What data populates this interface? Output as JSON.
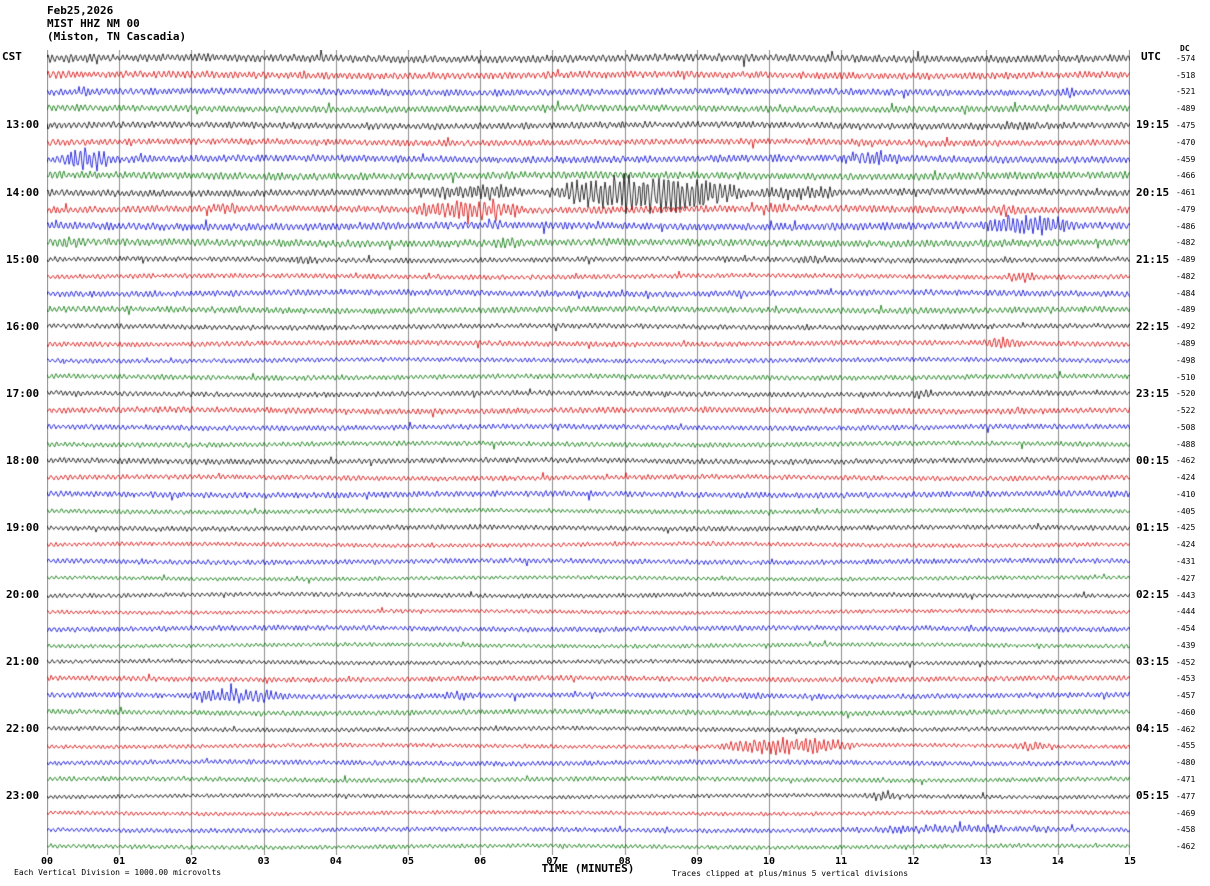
{
  "header": {
    "date": "Feb25,2026",
    "station": "MIST HHZ NM 00",
    "location": "(Miston, TN Cascadia)"
  },
  "axes": {
    "left_timezone": "CST",
    "right_timezone": "UTC",
    "dc_header": "DC",
    "x_title": "TIME (MINUTES)",
    "x_ticks": [
      "00",
      "01",
      "02",
      "03",
      "04",
      "05",
      "06",
      "07",
      "08",
      "09",
      "10",
      "11",
      "12",
      "13",
      "14",
      "15"
    ]
  },
  "footer": {
    "scale_note": "Each Vertical Division = 1000.00 microvolts",
    "clip_note": "Traces clipped at plus/minus 5 vertical divisions"
  },
  "chart_data": {
    "type": "line",
    "title": "MIST HHZ NM 00 webicorder",
    "x_range_minutes": [
      0,
      15
    ],
    "minutes_per_line": 15,
    "rows": 48,
    "trace_colors_cycle": [
      "#000000",
      "#d40000",
      "#0000d4",
      "#007300"
    ],
    "grid_color": "#8c8c8c",
    "left_time_labels": [
      {
        "row": 4,
        "label": "13:00"
      },
      {
        "row": 8,
        "label": "14:00"
      },
      {
        "row": 12,
        "label": "15:00"
      },
      {
        "row": 16,
        "label": "16:00"
      },
      {
        "row": 20,
        "label": "17:00"
      },
      {
        "row": 24,
        "label": "18:00"
      },
      {
        "row": 28,
        "label": "19:00"
      },
      {
        "row": 32,
        "label": "20:00"
      },
      {
        "row": 36,
        "label": "21:00"
      },
      {
        "row": 40,
        "label": "22:00"
      },
      {
        "row": 44,
        "label": "23:00"
      }
    ],
    "right_time_labels": [
      {
        "row": 4,
        "label": "19:15"
      },
      {
        "row": 8,
        "label": "20:15"
      },
      {
        "row": 12,
        "label": "21:15"
      },
      {
        "row": 16,
        "label": "22:15"
      },
      {
        "row": 20,
        "label": "23:15"
      },
      {
        "row": 24,
        "label": "00:15"
      },
      {
        "row": 28,
        "label": "01:15"
      },
      {
        "row": 32,
        "label": "02:15"
      },
      {
        "row": 36,
        "label": "03:15"
      },
      {
        "row": 40,
        "label": "04:15"
      },
      {
        "row": 44,
        "label": "05:15"
      }
    ],
    "dc_offsets": [
      -574,
      -518,
      -521,
      -489,
      -475,
      -470,
      -459,
      -466,
      -461,
      -479,
      -486,
      -482,
      -489,
      -482,
      -484,
      -489,
      -492,
      -489,
      -498,
      -510,
      -520,
      -522,
      -508,
      -488,
      -462,
      -424,
      -410,
      -405,
      -425,
      -424,
      -431,
      -427,
      -443,
      -444,
      -454,
      -439,
      -452,
      -453,
      -457,
      -460,
      -462,
      -455,
      -480,
      -471,
      -477,
      -469,
      -458,
      -462
    ],
    "events": [
      {
        "row": 2,
        "start_min": 0.3,
        "end_min": 0.7,
        "rel_amp": 4
      },
      {
        "row": 2,
        "start_min": 13.8,
        "end_min": 14.4,
        "rel_amp": 4
      },
      {
        "row": 4,
        "start_min": 13.0,
        "end_min": 14.0,
        "rel_amp": 4
      },
      {
        "row": 6,
        "start_min": 0.1,
        "end_min": 1.0,
        "rel_amp": 9
      },
      {
        "row": 6,
        "start_min": 10.8,
        "end_min": 12.0,
        "rel_amp": 6
      },
      {
        "row": 8,
        "start_min": 4.9,
        "end_min": 6.9,
        "rel_amp": 6
      },
      {
        "row": 8,
        "start_min": 6.9,
        "end_min": 9.7,
        "rel_amp": 16
      },
      {
        "row": 8,
        "start_min": 9.7,
        "end_min": 11.2,
        "rel_amp": 5
      },
      {
        "row": 9,
        "start_min": 2.2,
        "end_min": 2.8,
        "rel_amp": 6
      },
      {
        "row": 9,
        "start_min": 4.9,
        "end_min": 6.7,
        "rel_amp": 9
      },
      {
        "row": 9,
        "start_min": 9.8,
        "end_min": 10.5,
        "rel_amp": 5
      },
      {
        "row": 9,
        "start_min": 12.9,
        "end_min": 13.6,
        "rel_amp": 5
      },
      {
        "row": 10,
        "start_min": 5.9,
        "end_min": 6.5,
        "rel_amp": 4
      },
      {
        "row": 10,
        "start_min": 12.8,
        "end_min": 14.4,
        "rel_amp": 8
      },
      {
        "row": 11,
        "start_min": 0.05,
        "end_min": 0.6,
        "rel_amp": 5
      },
      {
        "row": 11,
        "start_min": 6.0,
        "end_min": 6.8,
        "rel_amp": 4
      },
      {
        "row": 12,
        "start_min": 3.3,
        "end_min": 3.8,
        "rel_amp": 4
      },
      {
        "row": 12,
        "start_min": 10.3,
        "end_min": 10.8,
        "rel_amp": 3.5
      },
      {
        "row": 13,
        "start_min": 13.2,
        "end_min": 13.8,
        "rel_amp": 4
      },
      {
        "row": 17,
        "start_min": 12.9,
        "end_min": 13.6,
        "rel_amp": 5
      },
      {
        "row": 20,
        "start_min": 11.8,
        "end_min": 12.4,
        "rel_amp": 4
      },
      {
        "row": 38,
        "start_min": 1.8,
        "end_min": 3.5,
        "rel_amp": 6
      },
      {
        "row": 38,
        "start_min": 5.4,
        "end_min": 6.0,
        "rel_amp": 4
      },
      {
        "row": 38,
        "start_min": 9.5,
        "end_min": 10.0,
        "rel_amp": 3.5
      },
      {
        "row": 41,
        "start_min": 9.2,
        "end_min": 11.3,
        "rel_amp": 7
      },
      {
        "row": 41,
        "start_min": 13.3,
        "end_min": 14.0,
        "rel_amp": 4.5
      },
      {
        "row": 44,
        "start_min": 11.2,
        "end_min": 11.9,
        "rel_amp": 4
      },
      {
        "row": 46,
        "start_min": 10.5,
        "end_min": 14.5,
        "rel_amp": 3.5
      }
    ]
  }
}
